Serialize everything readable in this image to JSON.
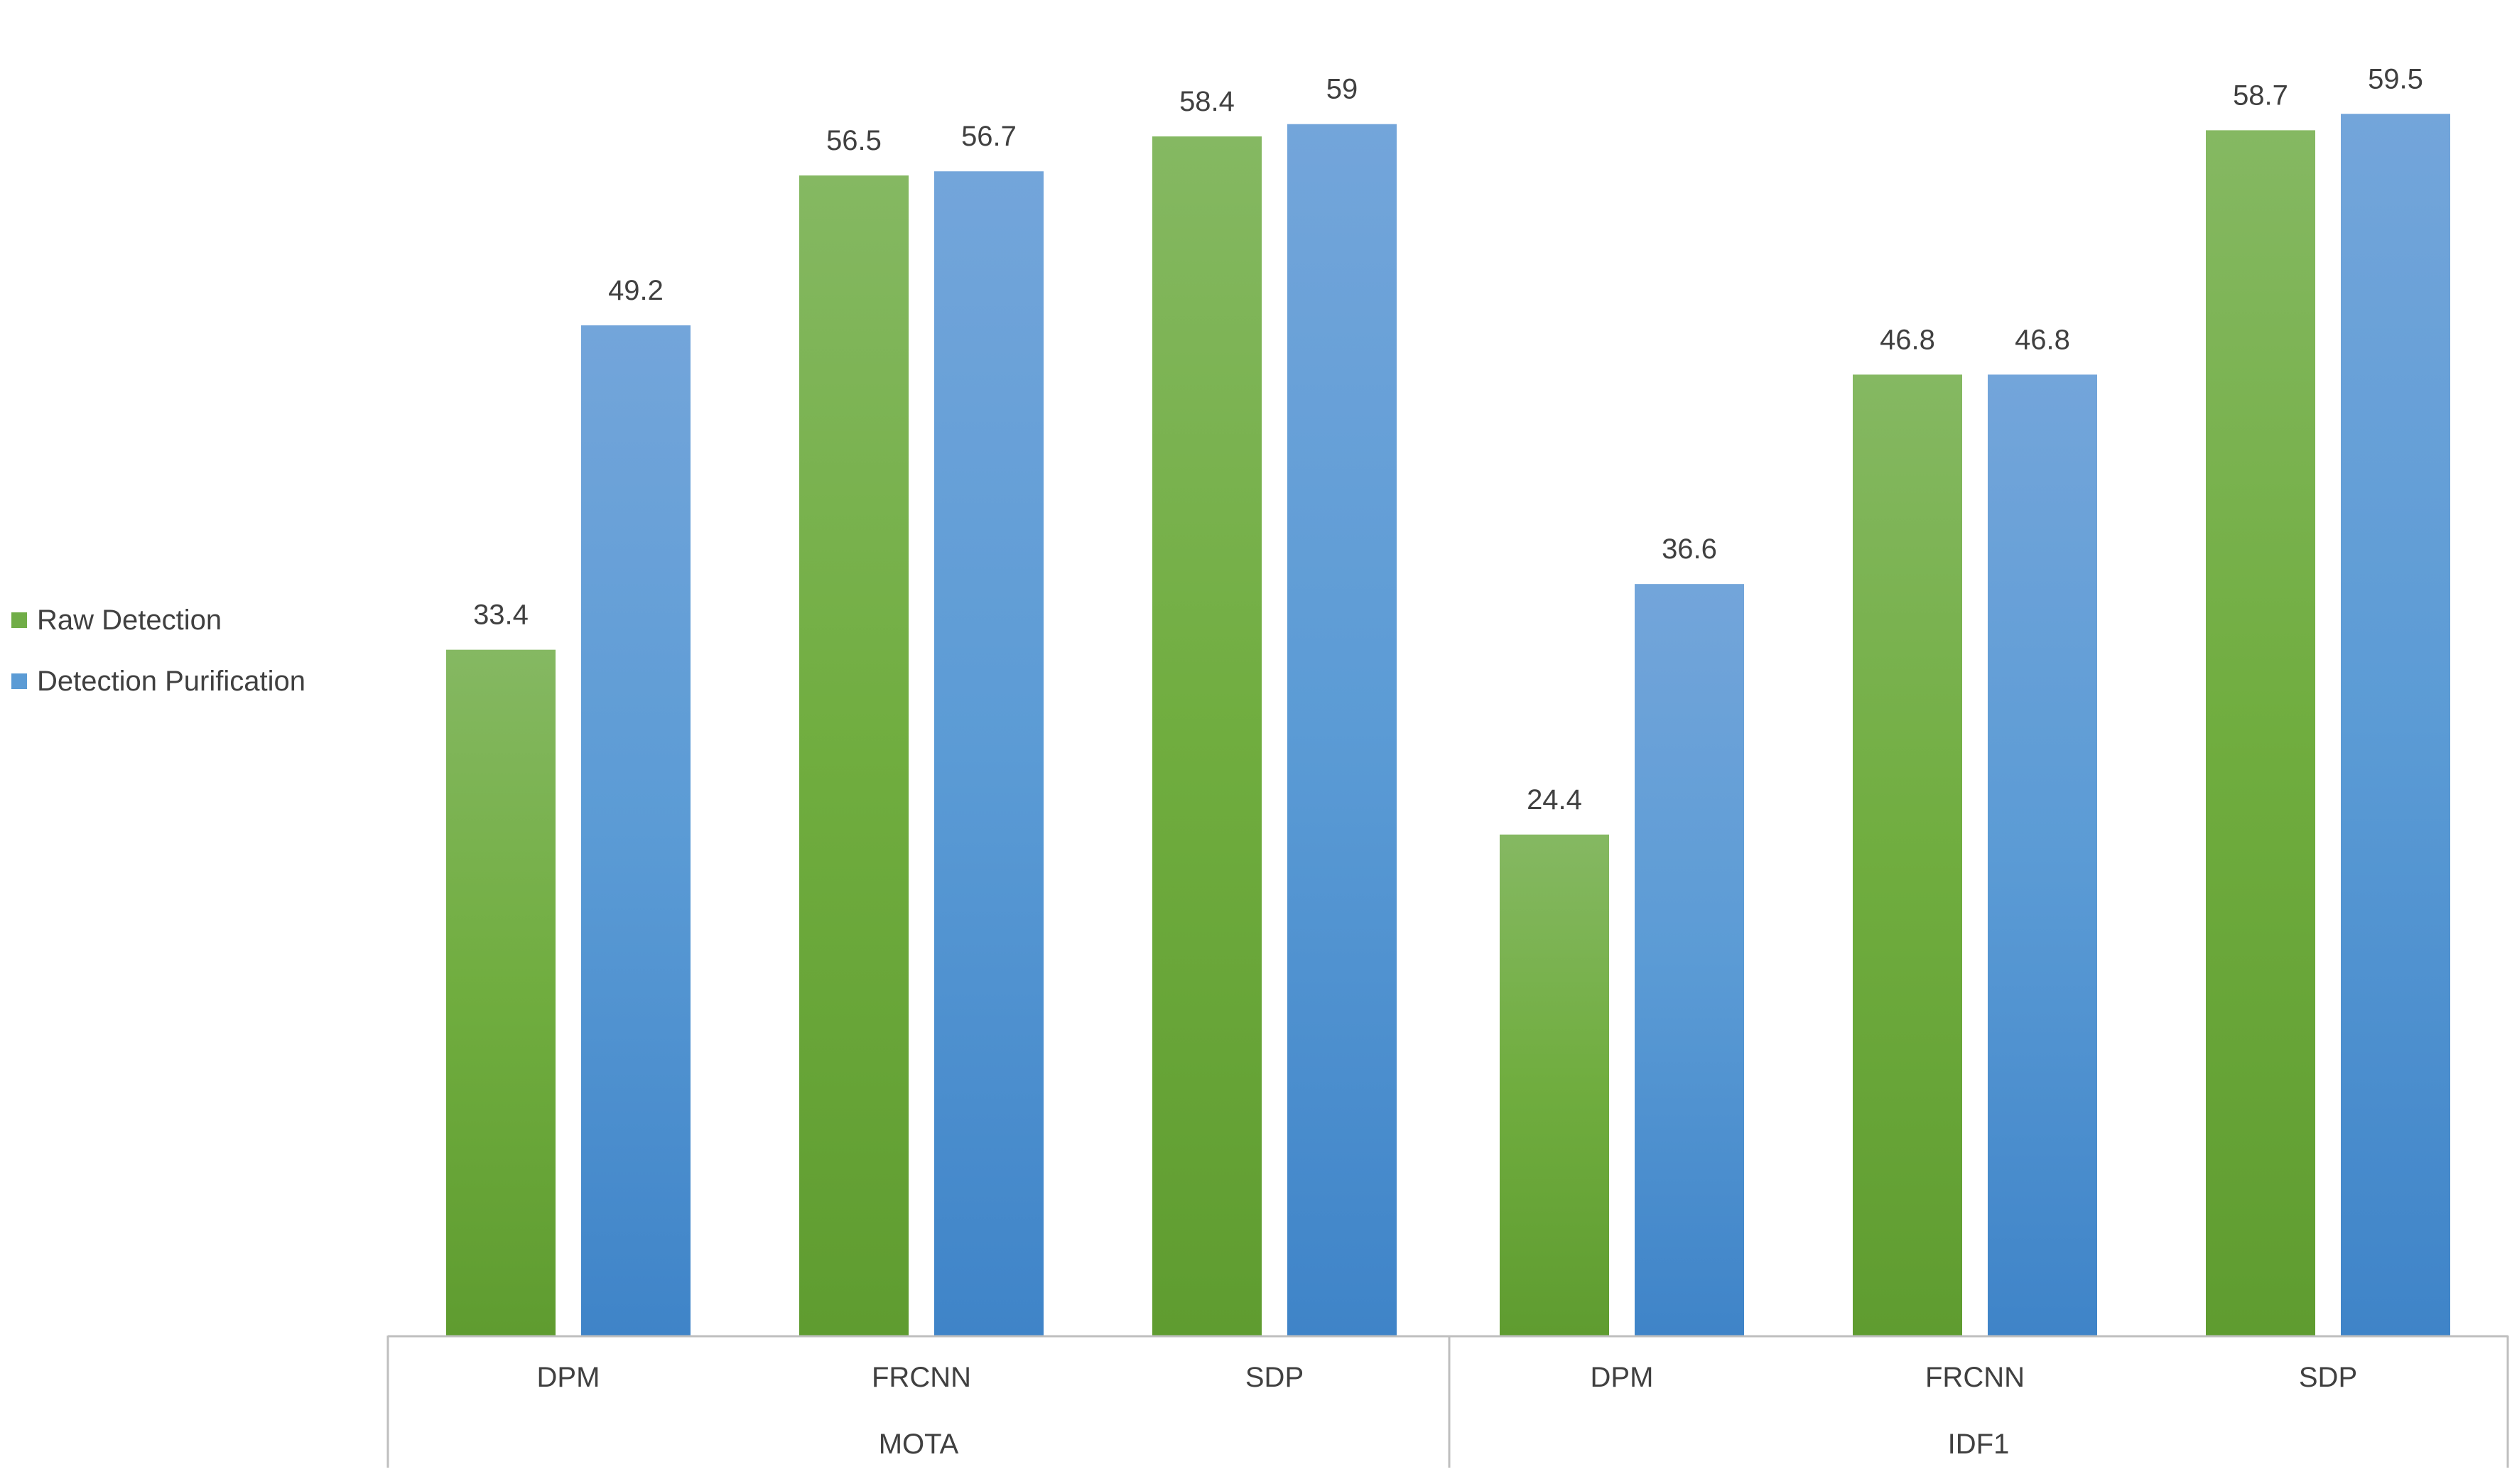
{
  "chart_data": {
    "type": "bar",
    "groups": [
      {
        "label": "MOTA",
        "categories": [
          "DPM",
          "FRCNN",
          "SDP"
        ]
      },
      {
        "label": "IDF1",
        "categories": [
          "DPM",
          "FRCNN",
          "SDP"
        ]
      }
    ],
    "series": [
      {
        "name": "Raw Detection",
        "values": [
          33.4,
          56.5,
          58.4,
          24.4,
          46.8,
          58.7
        ]
      },
      {
        "name": "Detection Purification",
        "values": [
          49.2,
          56.7,
          59,
          36.6,
          46.8,
          59.5
        ]
      }
    ],
    "title": "",
    "xlabel": "",
    "ylabel": "",
    "ylim": [
      0,
      62
    ],
    "grid": false,
    "legend": "left"
  },
  "legend": {
    "items": [
      {
        "label": "Raw Detection",
        "color": "#70ad47"
      },
      {
        "label": "Detection Purification",
        "color": "#5b9bd5"
      }
    ]
  }
}
